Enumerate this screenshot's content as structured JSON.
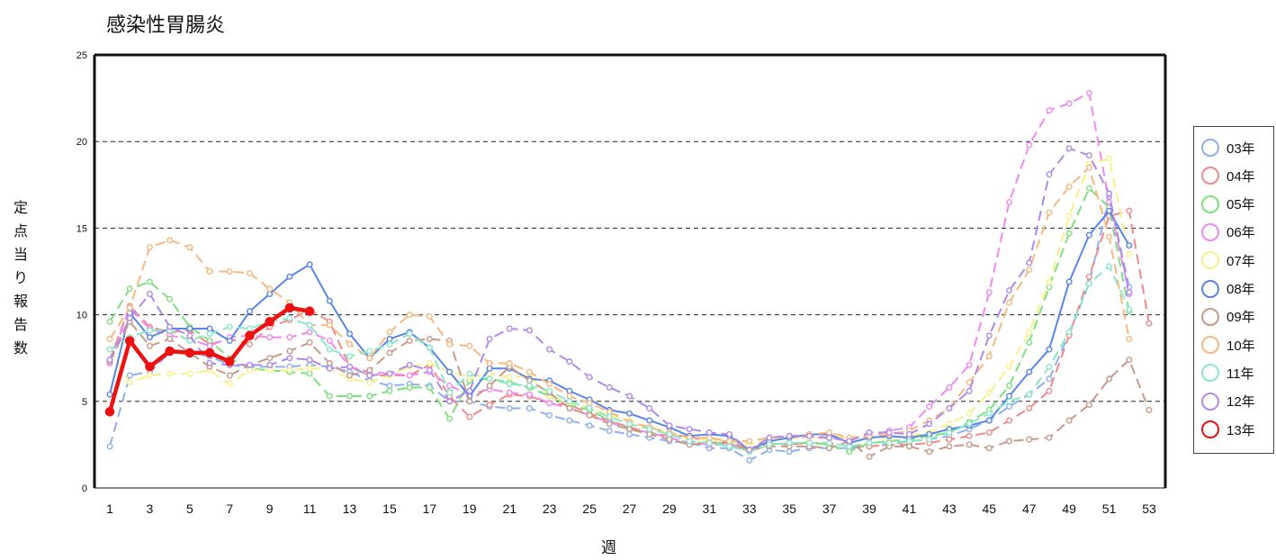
{
  "chart_data": {
    "type": "line",
    "title": "感染性胃腸炎",
    "xlabel": "週",
    "ylabel": "定点当り報告数",
    "xlim": [
      1,
      53
    ],
    "ylim": [
      0,
      25
    ],
    "x_ticks": [
      "1",
      "3",
      "5",
      "7",
      "9",
      "11",
      "13",
      "15",
      "17",
      "19",
      "21",
      "23",
      "25",
      "27",
      "29",
      "31",
      "33",
      "35",
      "37",
      "39",
      "41",
      "43",
      "45",
      "47",
      "49",
      "51",
      "53"
    ],
    "y_ticks": [
      "0",
      "5",
      "10",
      "15",
      "20",
      "25"
    ],
    "grid": "horizontal dashed",
    "legend_position": "right",
    "series": [
      {
        "name": "03年",
        "color": "#8eb0ee",
        "dashed": true,
        "values": [
          2.4,
          6.5,
          6.7,
          7.8,
          7.8,
          7.6,
          7.1,
          7.0,
          7.0,
          7.0,
          7.1,
          7.0,
          6.7,
          6.2,
          5.9,
          6.0,
          5.9,
          5.0,
          5.0,
          4.7,
          4.6,
          4.6,
          4.2,
          3.9,
          3.6,
          3.3,
          3.1,
          2.9,
          2.7,
          2.6,
          2.3,
          2.3,
          1.6,
          2.2,
          2.1,
          2.3,
          2.3,
          2.3,
          2.4,
          2.5,
          2.7,
          2.8,
          3.0,
          3.4,
          3.9,
          4.7,
          5.4,
          6.3,
          8.9,
          11.8,
          16.8,
          11.6
        ]
      },
      {
        "name": "04年",
        "color": "#f08a8a",
        "dashed": true,
        "values": [
          7.4,
          10.5,
          9.3,
          9.0,
          9.1,
          8.3,
          8.6,
          8.3,
          9.3,
          9.7,
          10.3,
          9.6,
          7.0,
          6.5,
          6.5,
          6.5,
          7.1,
          5.3,
          4.1,
          4.8,
          5.4,
          5.3,
          4.9,
          4.8,
          4.3,
          3.9,
          3.5,
          3.2,
          3.0,
          3.0,
          2.6,
          2.6,
          2.1,
          2.6,
          2.5,
          2.6,
          2.6,
          2.4,
          2.4,
          2.5,
          2.5,
          2.6,
          2.8,
          3.0,
          3.2,
          3.9,
          4.6,
          5.6,
          8.8,
          12.2,
          15.7,
          16.0,
          9.5
        ]
      },
      {
        "name": "05年",
        "color": "#7fe07f",
        "dashed": true,
        "values": [
          9.6,
          11.5,
          11.9,
          10.9,
          9.3,
          8.5,
          7.5,
          6.9,
          6.8,
          6.7,
          6.6,
          5.3,
          5.3,
          5.3,
          5.6,
          5.8,
          5.8,
          4.0,
          6.2,
          6.3,
          6.1,
          5.8,
          5.3,
          4.8,
          4.5,
          3.9,
          3.4,
          3.2,
          2.9,
          2.6,
          2.6,
          2.6,
          2.1,
          2.5,
          2.6,
          2.6,
          2.5,
          2.1,
          2.6,
          2.7,
          2.8,
          3.0,
          3.2,
          3.8,
          4.5,
          5.9,
          8.4,
          11.6,
          14.7,
          17.3,
          16.2,
          10.2
        ]
      },
      {
        "name": "06年",
        "color": "#f08af0",
        "dashed": true,
        "values": [
          7.2,
          10.4,
          9.2,
          8.8,
          8.6,
          8.2,
          8.7,
          8.8,
          8.7,
          8.7,
          9.0,
          8.5,
          7.0,
          6.7,
          6.6,
          6.5,
          6.7,
          5.9,
          5.4,
          5.7,
          5.5,
          5.4,
          4.9,
          4.6,
          4.2,
          3.8,
          3.4,
          3.2,
          2.9,
          2.6,
          2.5,
          2.5,
          2.2,
          2.9,
          3.0,
          2.9,
          2.9,
          2.8,
          3.0,
          3.3,
          3.5,
          4.7,
          5.8,
          7.1,
          11.3,
          16.5,
          19.8,
          21.8,
          22.2,
          22.8,
          16.5,
          11.2
        ]
      },
      {
        "name": "07年",
        "color": "#f8f08a",
        "dashed": true,
        "values": [
          8.0,
          6.1,
          6.5,
          6.6,
          6.6,
          6.8,
          6.0,
          6.8,
          6.8,
          6.8,
          6.9,
          6.9,
          6.3,
          6.1,
          6.5,
          7.0,
          7.2,
          6.7,
          6.4,
          6.6,
          6.4,
          6.5,
          5.3,
          4.9,
          4.6,
          4.2,
          3.9,
          3.5,
          3.2,
          2.8,
          2.8,
          2.7,
          2.5,
          2.8,
          2.9,
          2.9,
          3.0,
          2.9,
          2.9,
          2.9,
          3.0,
          3.2,
          3.7,
          4.3,
          5.5,
          7.0,
          9.0,
          11.9,
          15.7,
          18.7,
          19.0,
          13.5
        ]
      },
      {
        "name": "08年",
        "color": "#5a85e8",
        "dashed": false,
        "values": [
          5.4,
          10.1,
          8.7,
          9.2,
          9.2,
          9.2,
          8.5,
          10.2,
          11.2,
          12.2,
          12.9,
          10.8,
          8.9,
          7.5,
          8.6,
          9.0,
          8.1,
          6.7,
          5.3,
          6.9,
          6.9,
          6.3,
          6.2,
          5.6,
          5.1,
          4.5,
          4.3,
          3.9,
          3.5,
          3.0,
          3.1,
          3.0,
          2.2,
          2.7,
          2.9,
          3.1,
          3.1,
          2.6,
          2.9,
          3.0,
          2.9,
          3.1,
          3.4,
          3.6,
          3.9,
          5.3,
          6.7,
          8.0,
          11.9,
          14.6,
          16.0,
          14.0
        ]
      },
      {
        "name": "09年",
        "color": "#c89a8a",
        "dashed": true,
        "values": [
          7.3,
          9.6,
          8.2,
          8.6,
          7.8,
          7.0,
          6.5,
          7.1,
          7.5,
          7.9,
          8.4,
          7.2,
          6.5,
          6.8,
          7.8,
          8.5,
          8.6,
          8.5,
          5.0,
          5.9,
          7.0,
          6.2,
          5.5,
          4.6,
          4.2,
          3.7,
          3.4,
          3.1,
          2.8,
          2.5,
          2.6,
          2.7,
          2.2,
          2.4,
          2.4,
          2.4,
          2.3,
          2.7,
          1.8,
          2.4,
          2.4,
          2.1,
          2.4,
          2.5,
          2.3,
          2.7,
          2.8,
          2.9,
          3.9,
          4.8,
          6.3,
          7.4,
          4.5
        ]
      },
      {
        "name": "10年",
        "color": "#f8b880",
        "dashed": true,
        "values": [
          8.6,
          10.4,
          13.9,
          14.3,
          13.9,
          12.5,
          12.5,
          12.4,
          11.5,
          10.7,
          9.4,
          9.4,
          8.3,
          7.5,
          9.0,
          10.0,
          9.9,
          8.3,
          8.2,
          7.2,
          7.2,
          6.7,
          6.0,
          5.3,
          4.9,
          4.4,
          3.8,
          3.5,
          3.2,
          2.9,
          2.9,
          2.7,
          2.7,
          2.9,
          3.0,
          3.1,
          3.2,
          2.9,
          3.0,
          3.1,
          3.3,
          3.9,
          4.6,
          6.1,
          7.6,
          10.7,
          12.6,
          15.9,
          17.4,
          18.5,
          14.5,
          8.6
        ]
      },
      {
        "name": "11年",
        "color": "#8ae8c8",
        "dashed": true,
        "values": [
          8.0,
          8.7,
          9.1,
          9.1,
          8.5,
          8.9,
          9.3,
          9.2,
          9.6,
          9.8,
          9.4,
          8.0,
          7.6,
          7.9,
          8.3,
          8.9,
          8.1,
          5.5,
          6.6,
          6.3,
          6.0,
          5.9,
          5.6,
          5.0,
          4.6,
          4.1,
          3.7,
          3.4,
          3.1,
          2.7,
          2.6,
          2.4,
          2.1,
          2.5,
          2.6,
          2.6,
          2.6,
          2.4,
          2.6,
          2.6,
          2.7,
          2.8,
          3.2,
          3.7,
          4.3,
          5.0,
          5.4,
          7.0,
          9.0,
          11.8,
          12.8,
          10.3
        ]
      },
      {
        "name": "12年",
        "color": "#b08ae8",
        "dashed": true,
        "values": [
          7.4,
          9.8,
          11.2,
          9.3,
          8.8,
          7.2,
          7.1,
          7.1,
          7.1,
          7.5,
          7.4,
          6.9,
          7.0,
          6.5,
          6.6,
          7.1,
          6.8,
          5.0,
          5.6,
          8.6,
          9.2,
          9.1,
          8.0,
          7.3,
          6.4,
          5.8,
          5.3,
          4.6,
          3.6,
          3.4,
          3.2,
          3.1,
          2.2,
          2.9,
          3.0,
          3.0,
          2.9,
          2.7,
          3.2,
          3.2,
          3.1,
          3.7,
          4.6,
          5.6,
          8.8,
          11.4,
          13.0,
          18.1,
          19.6,
          19.2,
          17.0,
          11.3
        ]
      },
      {
        "name": "13年",
        "color": "#ee1111",
        "dashed": false,
        "bold": true,
        "values": [
          4.4,
          8.5,
          7.0,
          7.9,
          7.8,
          7.8,
          7.3,
          8.8,
          9.6,
          10.4,
          10.2
        ]
      }
    ]
  }
}
